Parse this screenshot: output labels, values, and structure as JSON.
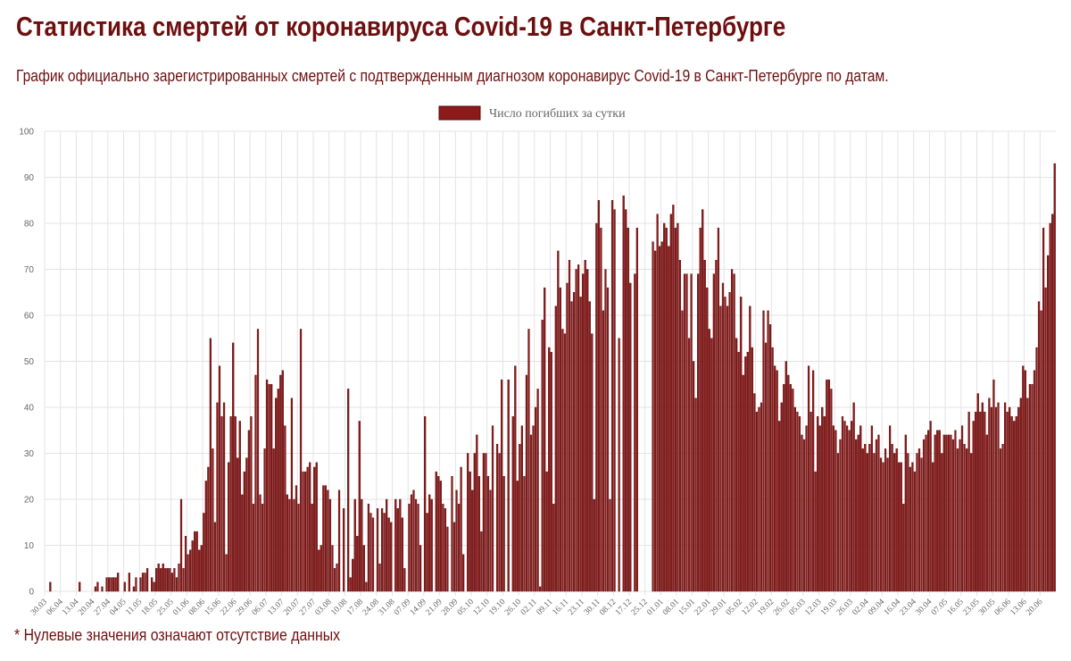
{
  "header": {
    "title": "Статистика смертей от коронавируса Covid-19 в Санкт-Петербурге",
    "subtitle": "График официально зарегистрированных смертей с подтвержденным диагнозом коронавирус Covid-19 в Санкт-Петербурге по датам."
  },
  "footnote": "* Нулевые значения означают отсутствие данных",
  "colors": {
    "bar": "#8b1a1a",
    "bar_border": "#5a0a0a",
    "text": "#6e0f0f",
    "grid": "#e3e3e3"
  },
  "chart_data": {
    "type": "bar",
    "title": "",
    "xlabel": "",
    "ylabel": "",
    "ylim": [
      0,
      100
    ],
    "yticks": [
      0,
      10,
      20,
      30,
      40,
      50,
      60,
      70,
      80,
      90,
      100
    ],
    "grid": true,
    "legend_position": "top",
    "tick_labels": [
      "30.03",
      "06.04",
      "13.04",
      "20.04",
      "27.04",
      "04.05",
      "11.05",
      "18.05",
      "25.05",
      "01.06",
      "08.06",
      "15.06",
      "22.06",
      "29.06",
      "06.07",
      "13.07",
      "20.07",
      "27.07",
      "03.08",
      "10.08",
      "17.08",
      "24.08",
      "31.08",
      "07.09",
      "14.09",
      "21.09",
      "28.09",
      "05.10",
      "12.10",
      "19.10",
      "26.10",
      "02.11",
      "09.11",
      "16.11",
      "23.11",
      "30.11",
      "08.12",
      "17.12",
      "25.12",
      "01.01",
      "08.01",
      "15.01",
      "22.01",
      "29.01",
      "05.02",
      "12.02",
      "19.02",
      "26.02",
      "05.03",
      "12.03",
      "19.03",
      "26.03",
      "02.04",
      "09.04",
      "16.04",
      "23.04",
      "30.04",
      "07.05",
      "16.05",
      "23.05",
      "30.05",
      "06.06",
      "13.06",
      "20.06"
    ],
    "tick_every": 7,
    "series": [
      {
        "name": "Число погибших за сутки",
        "values": [
          0,
          0,
          2,
          0,
          0,
          0,
          0,
          0,
          0,
          0,
          0,
          0,
          0,
          0,
          0,
          2,
          0,
          0,
          0,
          0,
          0,
          0,
          1,
          2,
          0,
          1,
          0,
          3,
          3,
          3,
          3,
          3,
          4,
          0,
          0,
          2,
          0,
          4,
          0,
          1,
          3,
          0,
          3,
          4,
          4,
          5,
          0,
          3,
          2,
          5,
          6,
          5,
          6,
          5,
          5,
          5,
          4,
          5,
          3,
          6,
          20,
          5,
          12,
          8,
          9,
          11,
          13,
          13,
          9,
          10,
          17,
          24,
          27,
          55,
          31,
          15,
          41,
          49,
          38,
          41,
          8,
          28,
          38,
          54,
          38,
          29,
          37,
          21,
          26,
          29,
          35,
          38,
          19,
          47,
          57,
          21,
          19,
          31,
          46,
          45,
          45,
          31,
          42,
          44,
          47,
          48,
          36,
          21,
          20,
          42,
          20,
          23,
          19,
          57,
          26,
          26,
          27,
          28,
          19,
          27,
          28,
          9,
          10,
          23,
          23,
          22,
          20,
          10,
          5,
          6,
          22,
          0,
          18,
          0,
          44,
          3,
          7,
          20,
          12,
          37,
          20,
          10,
          2,
          19,
          17,
          16,
          0,
          18,
          6,
          18,
          17,
          20,
          16,
          15,
          0,
          20,
          18,
          20,
          16,
          5,
          0,
          19,
          21,
          22,
          20,
          19,
          10,
          0,
          38,
          17,
          21,
          20,
          0,
          26,
          25,
          24,
          19,
          18,
          14,
          0,
          25,
          15,
          22,
          19,
          27,
          8,
          0,
          30,
          26,
          22,
          30,
          34,
          25,
          13,
          30,
          30,
          25,
          22,
          36,
          0,
          32,
          30,
          46,
          25,
          0,
          46,
          0,
          38,
          49,
          24,
          32,
          36,
          25,
          47,
          57,
          34,
          36,
          40,
          44,
          1,
          59,
          66,
          26,
          53,
          52,
          19,
          62,
          74,
          66,
          57,
          56,
          67,
          72,
          63,
          65,
          70,
          71,
          64,
          69,
          72,
          70,
          63,
          56,
          20,
          80,
          85,
          79,
          61,
          70,
          66,
          20,
          85,
          83,
          0,
          55,
          0,
          86,
          83,
          79,
          67,
          0,
          69,
          79,
          0,
          0,
          0,
          0,
          0,
          0,
          76,
          74,
          82,
          75,
          76,
          80,
          79,
          75,
          82,
          84,
          79,
          80,
          72,
          61,
          69,
          69,
          55,
          69,
          50,
          42,
          69,
          79,
          83,
          72,
          66,
          57,
          55,
          69,
          72,
          79,
          62,
          67,
          64,
          62,
          65,
          70,
          69,
          55,
          52,
          64,
          47,
          51,
          52,
          62,
          53,
          43,
          39,
          40,
          41,
          61,
          54,
          61,
          58,
          53,
          49,
          48,
          37,
          41,
          45,
          50,
          47,
          45,
          44,
          40,
          39,
          38,
          34,
          33,
          36,
          49,
          39,
          48,
          26,
          38,
          36,
          40,
          38,
          46,
          46,
          44,
          36,
          35,
          30,
          33,
          38,
          37,
          36,
          35,
          37,
          41,
          33,
          34,
          36,
          31,
          32,
          30,
          32,
          36,
          30,
          33,
          34,
          29,
          28,
          31,
          29,
          36,
          32,
          30,
          31,
          28,
          28,
          19,
          34,
          30,
          27,
          28,
          26,
          30,
          31,
          29,
          33,
          34,
          35,
          37,
          28,
          34,
          35,
          35,
          30,
          34,
          34,
          34,
          34,
          33,
          35,
          31,
          33,
          36,
          32,
          31,
          39,
          30,
          37,
          39,
          43,
          39,
          41,
          39,
          34,
          42,
          40,
          46,
          40,
          41,
          31,
          32,
          41,
          39,
          40,
          38,
          37,
          38,
          40,
          42,
          49,
          48,
          42,
          45,
          45,
          48,
          53,
          63,
          61,
          79,
          66,
          73,
          80,
          82,
          93
        ]
      }
    ]
  }
}
